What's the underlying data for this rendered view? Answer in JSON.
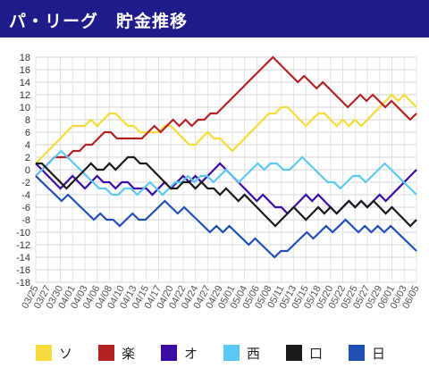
{
  "header": {
    "title": "パ・リーグ　貯金推移",
    "bg": "#1f1b8a"
  },
  "chart_data": {
    "type": "line",
    "title": "パ・リーグ　貯金推移",
    "ylim": [
      -18,
      18
    ],
    "yticks": [
      18,
      16,
      14,
      12,
      10,
      8,
      6,
      4,
      2,
      0,
      -2,
      -4,
      -6,
      -8,
      -10,
      -12,
      -14,
      -16,
      -18
    ],
    "grid": true,
    "legend_position": "bottom",
    "x_tick_labels": [
      "03/25",
      "03/27",
      "03/30",
      "04/01",
      "04/03",
      "04/06",
      "04/08",
      "04/10",
      "04/13",
      "04/15",
      "04/17",
      "04/20",
      "04/22",
      "04/24",
      "04/27",
      "04/29",
      "05/01",
      "05/04",
      "05/06",
      "05/08",
      "05/11",
      "05/13",
      "05/15",
      "05/18",
      "05/20",
      "05/22",
      "05/25",
      "05/27",
      "05/29",
      "06/01",
      "06/03",
      "06/05"
    ],
    "series": [
      {
        "name": "ソ",
        "color": "#f5dc3c",
        "values": [
          1,
          2,
          3,
          4,
          5,
          6,
          7,
          7,
          7,
          8,
          7,
          8,
          9,
          9,
          8,
          7,
          7,
          6,
          6,
          6,
          6,
          7,
          7,
          6,
          5,
          4,
          4,
          5,
          6,
          5,
          5,
          4,
          3,
          4,
          5,
          6,
          7,
          8,
          9,
          9,
          10,
          10,
          9,
          8,
          7,
          8,
          9,
          9,
          8,
          7,
          8,
          7,
          8,
          7,
          8,
          9,
          10,
          11,
          12,
          11,
          12,
          11,
          10
        ]
      },
      {
        "name": "楽",
        "color": "#b22222",
        "values": [
          -1,
          0,
          1,
          2,
          2,
          2,
          3,
          3,
          4,
          4,
          5,
          6,
          6,
          5,
          5,
          5,
          5,
          5,
          6,
          7,
          6,
          7,
          8,
          7,
          8,
          7,
          8,
          8,
          9,
          9,
          10,
          11,
          12,
          13,
          14,
          15,
          16,
          17,
          18,
          17,
          16,
          15,
          14,
          15,
          14,
          13,
          14,
          13,
          12,
          11,
          10,
          11,
          12,
          11,
          12,
          11,
          10,
          11,
          10,
          9,
          8,
          9
        ]
      },
      {
        "name": "オ",
        "color": "#3a0ca3",
        "values": [
          1,
          0,
          -1,
          -2,
          -3,
          -2,
          -1,
          -2,
          -3,
          -2,
          -1,
          -2,
          -2,
          -3,
          -2,
          -2,
          -3,
          -3,
          -3,
          -4,
          -3,
          -2,
          -3,
          -2,
          -1,
          -2,
          -1,
          -2,
          -1,
          0,
          1,
          0,
          -1,
          -2,
          -3,
          -4,
          -5,
          -4,
          -5,
          -6,
          -6,
          -7,
          -6,
          -5,
          -4,
          -5,
          -4,
          -5,
          -6,
          -7,
          -6,
          -5,
          -6,
          -5,
          -6,
          -5,
          -4,
          -5,
          -4,
          -3,
          -2,
          -1,
          0
        ]
      },
      {
        "name": "西",
        "color": "#5bc8f5",
        "values": [
          -1,
          0,
          1,
          2,
          3,
          2,
          1,
          0,
          -1,
          -2,
          -3,
          -3,
          -4,
          -4,
          -3,
          -3,
          -4,
          -3,
          -2,
          -3,
          -4,
          -3,
          -2,
          -2,
          -1,
          -2,
          -1,
          -1,
          -2,
          -1,
          0,
          -1,
          -2,
          -1,
          0,
          1,
          0,
          1,
          1,
          0,
          0,
          1,
          2,
          1,
          0,
          -1,
          -2,
          -2,
          -3,
          -2,
          -1,
          -1,
          -2,
          -1,
          0,
          1,
          0,
          -1,
          -2,
          -3,
          -4
        ]
      },
      {
        "name": "口",
        "color": "#1a1a1a",
        "values": [
          1,
          1,
          0,
          -1,
          -2,
          -3,
          -2,
          -1,
          0,
          1,
          0,
          0,
          1,
          0,
          1,
          2,
          2,
          1,
          1,
          0,
          -1,
          -2,
          -3,
          -3,
          -2,
          -2,
          -3,
          -2,
          -3,
          -3,
          -4,
          -3,
          -4,
          -5,
          -4,
          -5,
          -6,
          -7,
          -8,
          -9,
          -8,
          -7,
          -6,
          -7,
          -8,
          -7,
          -6,
          -7,
          -6,
          -7,
          -6,
          -5,
          -6,
          -5,
          -6,
          -5,
          -6,
          -7,
          -6,
          -7,
          -8,
          -9,
          -8
        ]
      },
      {
        "name": "日",
        "color": "#1f4fb4",
        "values": [
          -1,
          -2,
          -3,
          -4,
          -5,
          -4,
          -5,
          -6,
          -7,
          -8,
          -7,
          -8,
          -8,
          -9,
          -8,
          -7,
          -8,
          -8,
          -7,
          -6,
          -5,
          -6,
          -7,
          -6,
          -7,
          -8,
          -9,
          -10,
          -9,
          -10,
          -9,
          -10,
          -11,
          -12,
          -11,
          -12,
          -13,
          -14,
          -13,
          -13,
          -12,
          -11,
          -10,
          -11,
          -10,
          -9,
          -10,
          -9,
          -8,
          -9,
          -10,
          -9,
          -10,
          -9,
          -10,
          -9,
          -10,
          -11,
          -12,
          -13
        ]
      }
    ]
  }
}
